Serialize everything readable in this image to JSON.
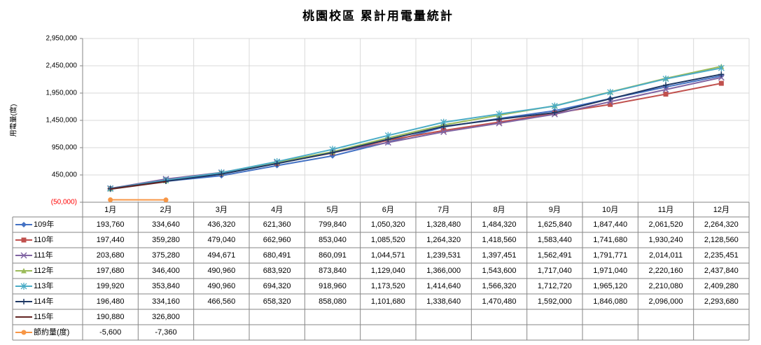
{
  "chart_data": {
    "type": "line",
    "title": "桃園校區  累計用電量統計",
    "y_label": "用電量(度)",
    "categories": [
      "1月",
      "2月",
      "3月",
      "4月",
      "5月",
      "6月",
      "7月",
      "8月",
      "9月",
      "10月",
      "11月",
      "12月"
    ],
    "ylim": [
      -50000,
      2950000
    ],
    "yticks": [
      {
        "value": -50000,
        "label": "(50,000)"
      },
      {
        "value": 450000,
        "label": "450,000"
      },
      {
        "value": 950000,
        "label": "950,000"
      },
      {
        "value": 1450000,
        "label": "1,450,000"
      },
      {
        "value": 1950000,
        "label": "1,950,000"
      },
      {
        "value": 2450000,
        "label": "2,450,000"
      },
      {
        "value": 2950000,
        "label": "2,950,000"
      }
    ],
    "grid": true,
    "series": [
      {
        "name": "109年",
        "color": "#4472c4",
        "marker": "diamond",
        "values": [
          193760,
          334640,
          436320,
          621360,
          799840,
          1050320,
          1328480,
          1484320,
          1625840,
          1847440,
          2061520,
          2264320
        ],
        "value_labels": [
          "193,760",
          "334,640",
          "436,320",
          "621,360",
          "799,840",
          "1,050,320",
          "1,328,480",
          "1,484,320",
          "1,625,840",
          "1,847,440",
          "2,061,520",
          "2,264,320"
        ]
      },
      {
        "name": "110年",
        "color": "#c0504d",
        "marker": "square",
        "values": [
          197440,
          359280,
          479040,
          662960,
          853040,
          1085520,
          1264320,
          1418560,
          1583440,
          1741680,
          1930240,
          2128560
        ],
        "value_labels": [
          "197,440",
          "359,280",
          "479,040",
          "662,960",
          "853,040",
          "1,085,520",
          "1,264,320",
          "1,418,560",
          "1,583,440",
          "1,741,680",
          "1,930,240",
          "2,128,560"
        ]
      },
      {
        "name": "111年",
        "color": "#8064a2",
        "marker": "x",
        "values": [
          203680,
          375280,
          494671,
          680491,
          860091,
          1044571,
          1239531,
          1397451,
          1562491,
          1791771,
          2014011,
          2235451
        ],
        "value_labels": [
          "203,680",
          "375,280",
          "494,671",
          "680,491",
          "860,091",
          "1,044,571",
          "1,239,531",
          "1,397,451",
          "1,562,491",
          "1,791,771",
          "2,014,011",
          "2,235,451"
        ]
      },
      {
        "name": "112年",
        "color": "#9bbb59",
        "marker": "triangle",
        "values": [
          197680,
          346400,
          490960,
          683920,
          873840,
          1129040,
          1366000,
          1543600,
          1717040,
          1971040,
          2220160,
          2437840
        ],
        "value_labels": [
          "197,680",
          "346,400",
          "490,960",
          "683,920",
          "873,840",
          "1,129,040",
          "1,366,000",
          "1,543,600",
          "1,717,040",
          "1,971,040",
          "2,220,160",
          "2,437,840"
        ]
      },
      {
        "name": "113年",
        "color": "#4bacc6",
        "marker": "star",
        "values": [
          199920,
          353840,
          490960,
          694320,
          918960,
          1173520,
          1414640,
          1566320,
          1712720,
          1965120,
          2210080,
          2409280
        ],
        "value_labels": [
          "199,920",
          "353,840",
          "490,960",
          "694,320",
          "918,960",
          "1,173,520",
          "1,414,640",
          "1,566,320",
          "1,712,720",
          "1,965,120",
          "2,210,080",
          "2,409,280"
        ]
      },
      {
        "name": "114年",
        "color": "#1f3864",
        "marker": "plus",
        "values": [
          196480,
          334160,
          466560,
          658320,
          858080,
          1101680,
          1338640,
          1470480,
          1592000,
          1846080,
          2096000,
          2293680
        ],
        "value_labels": [
          "196,480",
          "334,160",
          "466,560",
          "658,320",
          "858,080",
          "1,101,680",
          "1,338,640",
          "1,470,480",
          "1,592,000",
          "1,846,080",
          "2,096,000",
          "2,293,680"
        ]
      },
      {
        "name": "115年",
        "color": "#632523",
        "marker": "none",
        "values": [
          190880,
          326800,
          null,
          null,
          null,
          null,
          null,
          null,
          null,
          null,
          null,
          null
        ],
        "value_labels": [
          "190,880",
          "326,800",
          null,
          null,
          null,
          null,
          null,
          null,
          null,
          null,
          null,
          null
        ]
      },
      {
        "name": "節約量(度)",
        "color": "#f79646",
        "marker": "circle",
        "values": [
          -5600,
          -7360,
          null,
          null,
          null,
          null,
          null,
          null,
          null,
          null,
          null,
          null
        ],
        "value_labels": [
          "-5,600",
          "-7,360",
          null,
          null,
          null,
          null,
          null,
          null,
          null,
          null,
          null,
          null
        ]
      }
    ]
  }
}
